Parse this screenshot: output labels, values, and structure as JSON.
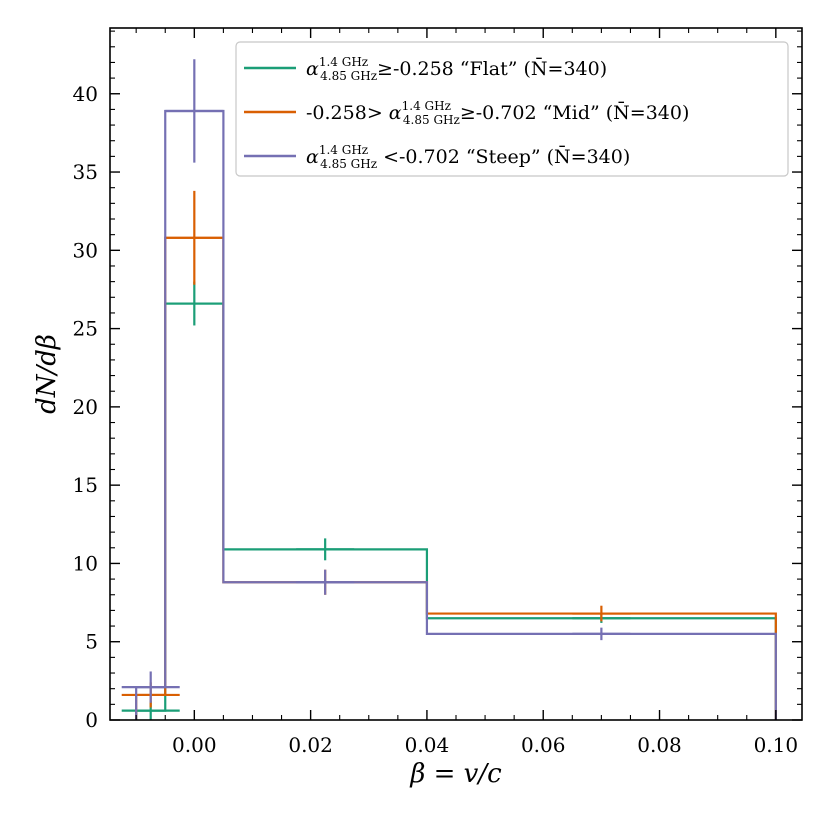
{
  "chart_data": {
    "type": "step-histogram",
    "xlabel": "β = v/c",
    "ylabel": "dN/dβ",
    "xlim": [
      -0.0145,
      0.1045
    ],
    "ylim": [
      0,
      44.2
    ],
    "xticks": [
      0.0,
      0.02,
      0.04,
      0.06,
      0.08,
      0.1
    ],
    "xtick_labels": [
      "0.00",
      "0.02",
      "0.04",
      "0.06",
      "0.08",
      "0.10"
    ],
    "yticks": [
      0,
      5,
      10,
      15,
      20,
      25,
      30,
      35,
      40
    ],
    "ytick_labels": [
      "0",
      "5",
      "10",
      "15",
      "20",
      "25",
      "30",
      "35",
      "40"
    ],
    "bin_edges": [
      -0.01,
      -0.005,
      0.005,
      0.04,
      0.1
    ],
    "bin_centers": [
      -0.0075,
      0.0,
      0.0225,
      0.07
    ],
    "legend_position": "top-right",
    "series": [
      {
        "id": "flat",
        "legend": {
          "alpha": "α",
          "sup": "1.4 GHz",
          "sub": "4.85 GHz",
          "text": "≥-0.258 “Flat” (N̄=340)"
        },
        "color": "#1b9e77",
        "values": [
          0.6,
          26.6,
          10.9,
          6.5
        ],
        "errors": [
          0.6,
          1.4,
          0.7,
          0.3
        ]
      },
      {
        "id": "mid",
        "legend": {
          "prefix": "-0.258> ",
          "alpha": "α",
          "sup": "1.4 GHz",
          "sub": "4.85 GHz",
          "text": "≥-0.702 “Mid” (N̄=340)"
        },
        "color": "#d95f02",
        "values": [
          1.6,
          30.8,
          8.8,
          6.8
        ],
        "errors": [
          0.8,
          3.0,
          0.8,
          0.5
        ]
      },
      {
        "id": "steep",
        "legend": {
          "alpha": "α",
          "sup": "1.4 GHz",
          "sub": "4.85 GHz",
          "text": " <-0.702 “Steep” (N̄=340)"
        },
        "color": "#7570b3",
        "values": [
          2.1,
          38.9,
          8.8,
          5.5
        ],
        "errors": [
          1.0,
          3.3,
          0.8,
          0.4
        ]
      }
    ]
  }
}
